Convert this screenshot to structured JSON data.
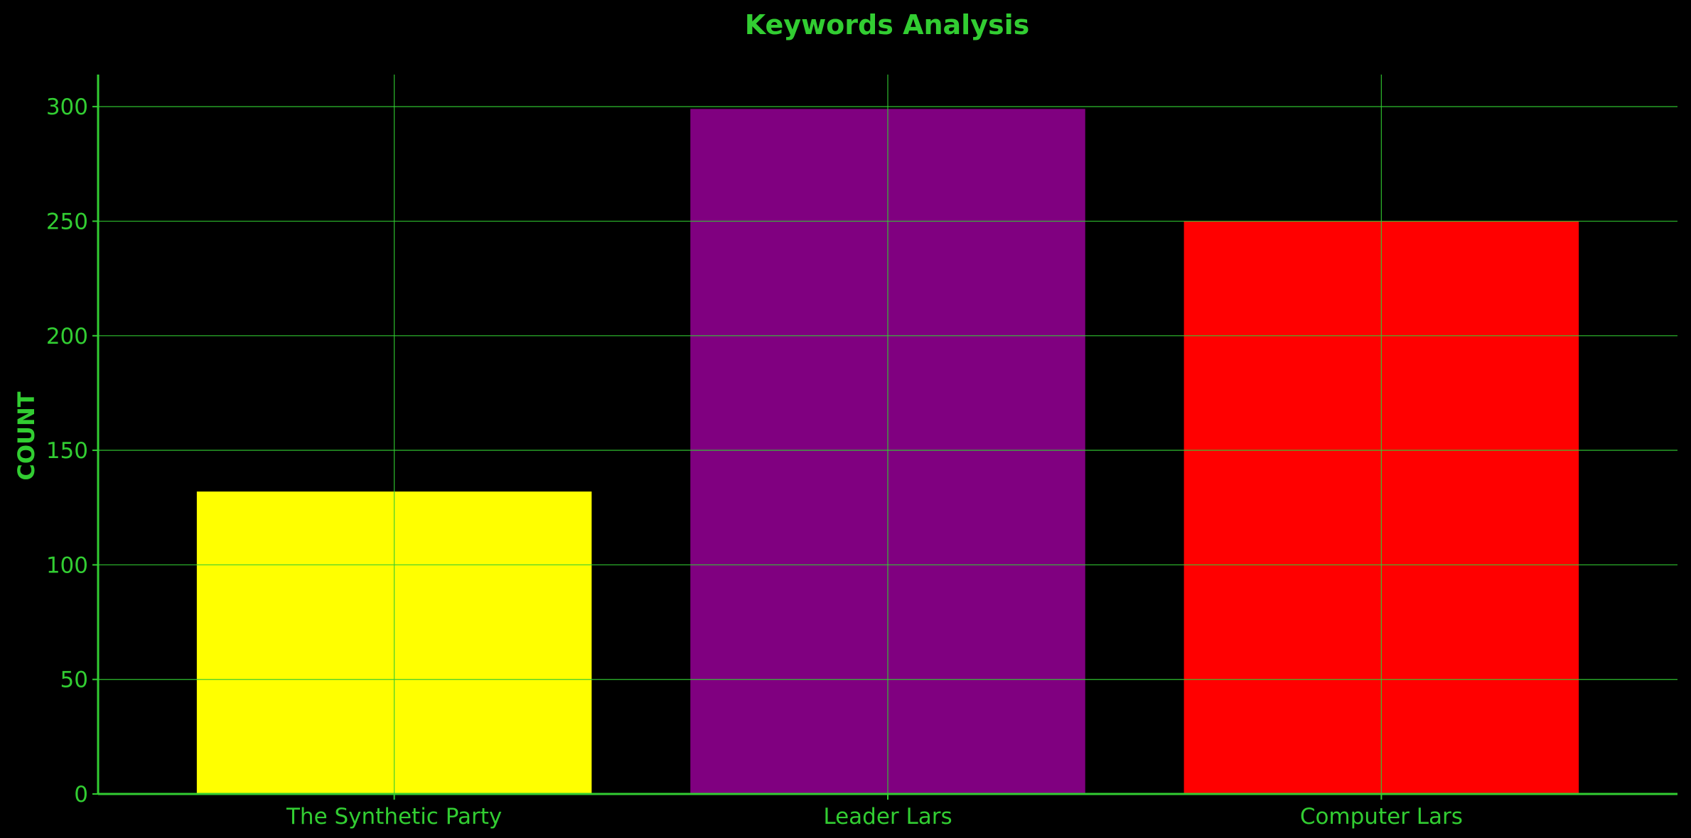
{
  "chart_data": {
    "type": "bar",
    "title": "Keywords Analysis",
    "xlabel": "",
    "ylabel": "COUNT",
    "categories": [
      "The Synthetic Party",
      "Leader Lars",
      "Computer Lars"
    ],
    "values": [
      132,
      299,
      250
    ],
    "bar_colors": [
      "#ffff00",
      "#800080",
      "#ff0000"
    ],
    "ylim": [
      0,
      314
    ],
    "yticks": [
      0,
      50,
      100,
      150,
      200,
      250,
      300
    ],
    "grid": true
  },
  "theme": {
    "background": "#000000",
    "accent": "#32cd32"
  }
}
